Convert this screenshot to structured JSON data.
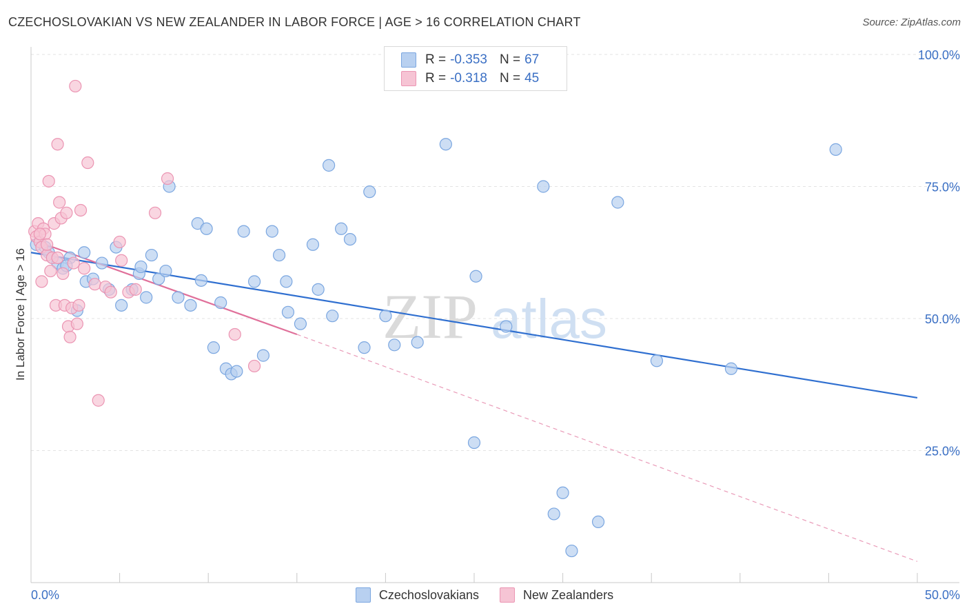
{
  "header": {
    "title": "CZECHOSLOVAKIAN VS NEW ZEALANDER IN LABOR FORCE | AGE > 16 CORRELATION CHART",
    "source": "Source: ZipAtlas.com"
  },
  "watermark": {
    "zip": "ZIP",
    "atlas": "atlas"
  },
  "colors": {
    "blue_fill": "#b8d0f0",
    "blue_stroke": "#7aa6e0",
    "blue_line": "#2f6fd0",
    "pink_fill": "#f6c4d4",
    "pink_stroke": "#eb94b2",
    "pink_line": "#e0709a",
    "tick_label": "#3a6fc4",
    "grid": "#e3e3e3"
  },
  "legend": {
    "rows": [
      {
        "r_label": "R =",
        "r_value": "-0.353",
        "n_label": "N =",
        "n_value": "67",
        "color": "#b8d0f0",
        "border": "#7aa6e0"
      },
      {
        "r_label": "R =",
        "r_value": "-0.318",
        "n_label": "N =",
        "n_value": "45",
        "color": "#f6c4d4",
        "border": "#eb94b2"
      }
    ]
  },
  "chart_data": {
    "type": "scatter",
    "title": "CZECHOSLOVAKIAN VS NEW ZEALANDER IN LABOR FORCE | AGE > 16 CORRELATION CHART",
    "xlabel": "",
    "ylabel": "In Labor Force | Age > 16",
    "xlim": [
      0,
      50
    ],
    "ylim": [
      0,
      100
    ],
    "x_tick_labels": [
      "0.0%",
      "50.0%"
    ],
    "y_ticks": [
      25,
      50,
      75,
      100
    ],
    "y_tick_labels": [
      "25.0%",
      "50.0%",
      "75.0%",
      "100.0%"
    ],
    "grid": true,
    "legend_position": "top-center",
    "series": [
      {
        "name": "Czechoslovakians",
        "color": "#b8d0f0",
        "stats": {
          "R": -0.353,
          "N": 67
        },
        "trend": {
          "x0": 0,
          "y0": 62.5,
          "x1": 50,
          "y1": 35.0
        },
        "points": [
          [
            0.3,
            64.0
          ],
          [
            0.5,
            64.5
          ],
          [
            0.8,
            63.5
          ],
          [
            1.0,
            62.5
          ],
          [
            1.2,
            61.5
          ],
          [
            1.5,
            60.5
          ],
          [
            1.8,
            59.5
          ],
          [
            2.2,
            61.5
          ],
          [
            2.6,
            51.5
          ],
          [
            3.1,
            57.0
          ],
          [
            3.5,
            57.5
          ],
          [
            4.0,
            60.5
          ],
          [
            4.4,
            55.5
          ],
          [
            4.8,
            63.5
          ],
          [
            5.1,
            52.5
          ],
          [
            5.7,
            55.5
          ],
          [
            6.1,
            58.5
          ],
          [
            6.5,
            54.0
          ],
          [
            6.8,
            62.0
          ],
          [
            7.2,
            57.5
          ],
          [
            7.6,
            59.0
          ],
          [
            7.8,
            75.0
          ],
          [
            8.3,
            54.0
          ],
          [
            9.0,
            52.5
          ],
          [
            9.4,
            68.0
          ],
          [
            9.9,
            67.0
          ],
          [
            10.3,
            44.5
          ],
          [
            10.7,
            53.0
          ],
          [
            11.0,
            40.5
          ],
          [
            11.3,
            39.5
          ],
          [
            11.6,
            40.0
          ],
          [
            12.0,
            66.5
          ],
          [
            12.6,
            57.0
          ],
          [
            13.1,
            43.0
          ],
          [
            13.6,
            66.5
          ],
          [
            14.0,
            62.0
          ],
          [
            14.4,
            57.0
          ],
          [
            15.2,
            49.0
          ],
          [
            15.9,
            64.0
          ],
          [
            16.2,
            55.5
          ],
          [
            16.8,
            79.0
          ],
          [
            17.5,
            67.0
          ],
          [
            18.0,
            65.0
          ],
          [
            17.0,
            50.5
          ],
          [
            18.8,
            44.5
          ],
          [
            19.1,
            74.0
          ],
          [
            20.0,
            50.5
          ],
          [
            20.5,
            45.0
          ],
          [
            21.8,
            45.5
          ],
          [
            23.4,
            83.0
          ],
          [
            25.1,
            58.0
          ],
          [
            25.0,
            26.5
          ],
          [
            26.8,
            48.5
          ],
          [
            28.9,
            75.0
          ],
          [
            29.5,
            13.0
          ],
          [
            30.0,
            17.0
          ],
          [
            30.5,
            6.0
          ],
          [
            32.0,
            11.5
          ],
          [
            33.1,
            72.0
          ],
          [
            35.3,
            42.0
          ],
          [
            39.5,
            40.5
          ],
          [
            45.4,
            82.0
          ],
          [
            2.0,
            60.0
          ],
          [
            3.0,
            62.5
          ],
          [
            6.2,
            59.8
          ],
          [
            9.6,
            57.2
          ],
          [
            14.5,
            51.2
          ]
        ]
      },
      {
        "name": "New Zealanders",
        "color": "#f6c4d4",
        "stats": {
          "R": -0.318,
          "N": 45
        },
        "trend": {
          "x0": 0,
          "y0": 65.0,
          "x1": 15.0,
          "y1": 47.0,
          "dash_x1": 50,
          "dash_y1": 4.0
        },
        "points": [
          [
            0.2,
            66.5
          ],
          [
            0.3,
            65.5
          ],
          [
            0.4,
            68.0
          ],
          [
            0.5,
            64.5
          ],
          [
            0.6,
            63.5
          ],
          [
            0.7,
            67.0
          ],
          [
            0.8,
            66.0
          ],
          [
            0.9,
            62.0
          ],
          [
            1.0,
            76.0
          ],
          [
            1.1,
            59.0
          ],
          [
            1.2,
            61.5
          ],
          [
            1.3,
            68.0
          ],
          [
            1.4,
            52.5
          ],
          [
            1.5,
            83.0
          ],
          [
            1.6,
            72.0
          ],
          [
            1.7,
            69.0
          ],
          [
            1.8,
            58.5
          ],
          [
            1.9,
            52.5
          ],
          [
            2.0,
            70.0
          ],
          [
            2.1,
            48.5
          ],
          [
            2.2,
            46.5
          ],
          [
            2.3,
            52.0
          ],
          [
            2.4,
            60.5
          ],
          [
            2.5,
            94.0
          ],
          [
            2.6,
            49.0
          ],
          [
            2.7,
            52.5
          ],
          [
            2.8,
            70.5
          ],
          [
            3.0,
            59.5
          ],
          [
            3.2,
            79.5
          ],
          [
            3.6,
            56.5
          ],
          [
            3.8,
            34.5
          ],
          [
            4.2,
            56.0
          ],
          [
            4.5,
            55.0
          ],
          [
            5.0,
            64.5
          ],
          [
            5.1,
            61.0
          ],
          [
            5.5,
            55.0
          ],
          [
            5.9,
            55.5
          ],
          [
            7.0,
            70.0
          ],
          [
            7.7,
            76.5
          ],
          [
            11.5,
            47.0
          ],
          [
            12.6,
            41.0
          ],
          [
            0.6,
            57.0
          ],
          [
            0.9,
            64.0
          ],
          [
            1.5,
            61.5
          ],
          [
            0.5,
            66.0
          ]
        ]
      }
    ]
  }
}
